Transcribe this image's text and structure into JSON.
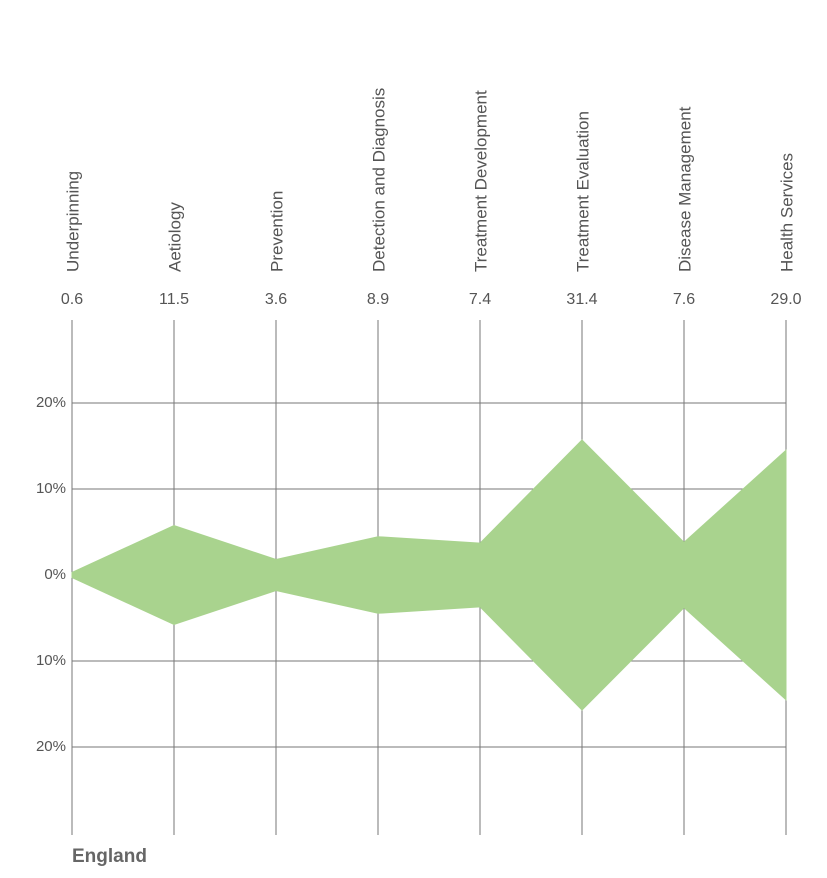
{
  "chart_data": {
    "type": "area",
    "label": "England",
    "categories": [
      "Underpinning",
      "Aetiology",
      "Prevention",
      "Detection and Diagnosis",
      "Treatment  Development",
      "Treatment  Evaluation",
      "Disease Management",
      "Health Services"
    ],
    "values": [
      0.6,
      11.5,
      3.6,
      8.9,
      7.4,
      31.4,
      7.6,
      29.0
    ],
    "value_labels": [
      "0.6",
      "11.5",
      "3.6",
      "8.9",
      "7.4",
      "31.4",
      "7.6",
      "29.0"
    ],
    "color": "#a9d38e",
    "ylim": [
      -30,
      30
    ],
    "yticks": [
      {
        "value": 20,
        "label": "20%"
      },
      {
        "value": 10,
        "label": "10%"
      },
      {
        "value": 0,
        "label": "0%"
      },
      {
        "value": -10,
        "label": "10%"
      },
      {
        "value": -20,
        "label": "20%"
      }
    ],
    "grid": true
  }
}
